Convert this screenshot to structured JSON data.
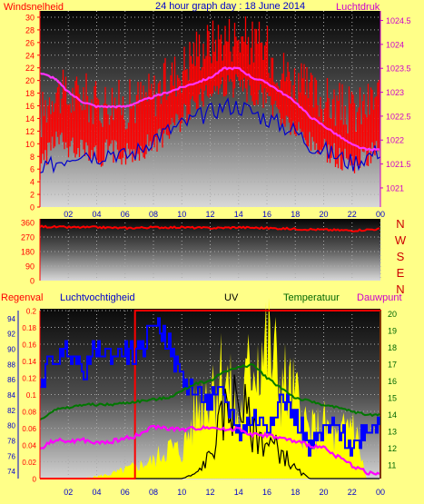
{
  "colors": {
    "background": "#ffff88",
    "wind": "#ff0000",
    "gust_bars": "#ff0000",
    "pressure": "#ff33ff",
    "direction": "#ff0000",
    "rain": "#ff0000",
    "humidity": "#0000ff",
    "uv": "#000000",
    "temperature": "#007700",
    "dewpoint": "#ff00ff",
    "solar": "#ffff00",
    "axis_left": "#ff0000",
    "axis_right": "#cc00cc",
    "axis_blue": "#0000cc",
    "axis_green": "#006600",
    "x_labels": "#0000cc"
  },
  "chart_data": [
    {
      "type": "line",
      "title": "24 hour graph day : 18 June 2014",
      "y_label_left": "Windsnelheid",
      "y_label_right": "Luchtdruk",
      "x_ticks": [
        "02",
        "04",
        "06",
        "08",
        "10",
        "12",
        "14",
        "16",
        "18",
        "20",
        "22",
        "00"
      ],
      "y_ticks_left": [
        "0",
        "2",
        "4",
        "6",
        "8",
        "10",
        "12",
        "14",
        "16",
        "18",
        "20",
        "22",
        "24",
        "26",
        "28",
        "30"
      ],
      "y_ticks_right": [
        "1021",
        "1021.5",
        "1022",
        "1022.5",
        "1023",
        "1023.5",
        "1024",
        "1024.5"
      ],
      "ylim_left": [
        0,
        31
      ],
      "ylim_right": [
        1020.6,
        1024.7
      ],
      "x": [
        0,
        1,
        2,
        3,
        4,
        5,
        6,
        7,
        8,
        9,
        10,
        11,
        12,
        13,
        14,
        15,
        16,
        17,
        18,
        19,
        20,
        21,
        22,
        23,
        24
      ],
      "series": [
        {
          "values": [
            11,
            16,
            14,
            15,
            13,
            14,
            13,
            14,
            15,
            17,
            19,
            22,
            23,
            24,
            24,
            23,
            22,
            19,
            17,
            15,
            14,
            13,
            12,
            13,
            15
          ]
        },
        {
          "values": [
            5,
            7,
            8,
            9,
            8,
            9,
            8,
            9,
            11,
            12,
            13,
            14,
            15,
            16,
            16,
            15,
            14,
            13,
            12,
            10,
            9,
            8,
            7,
            8,
            9
          ]
        },
        {
          "values": [
            1023.4,
            1023.3,
            1023.0,
            1022.8,
            1022.7,
            1022.7,
            1022.7,
            1022.8,
            1022.9,
            1023.0,
            1023.1,
            1023.2,
            1023.3,
            1023.5,
            1023.5,
            1023.3,
            1023.2,
            1023.0,
            1022.8,
            1022.5,
            1022.3,
            1022.1,
            1021.9,
            1021.8,
            1021.8
          ]
        }
      ]
    },
    {
      "type": "line",
      "y_label_right": "N W S E N",
      "y_ticks_left": [
        "0",
        "90",
        "180",
        "270",
        "360"
      ],
      "ylim": [
        0,
        360
      ],
      "x": [
        0,
        2,
        4,
        6,
        8,
        10,
        12,
        14,
        16,
        18,
        20,
        22,
        24
      ],
      "values": [
        335,
        330,
        330,
        325,
        330,
        330,
        325,
        330,
        325,
        320,
        315,
        310,
        320
      ]
    },
    {
      "type": "line",
      "labels": [
        "Regenval",
        "Luchtvochtigheid",
        "UV",
        "Temperatuur",
        "Dauwpunt"
      ],
      "y_ticks_rain": [
        "0",
        "0.02",
        "0.04",
        "0.06",
        "0.08",
        "0.1",
        "0.12",
        "0.14",
        "0.16",
        "0.18",
        "0.2"
      ],
      "y_ticks_humidity": [
        "74",
        "76",
        "78",
        "80",
        "82",
        "84",
        "86",
        "88",
        "90",
        "92",
        "94"
      ],
      "y_ticks_temp": [
        "11",
        "12",
        "13",
        "14",
        "15",
        "16",
        "17",
        "18",
        "19",
        "20"
      ],
      "ylim_rain": [
        0,
        0.2
      ],
      "ylim_humidity": [
        73,
        95
      ],
      "ylim_temp": [
        10.2,
        20.2
      ],
      "x": [
        0,
        1,
        2,
        3,
        4,
        5,
        6,
        7,
        8,
        9,
        10,
        11,
        12,
        13,
        14,
        15,
        16,
        17,
        18,
        19,
        20,
        21,
        22,
        23,
        24
      ],
      "rain_total": [
        0,
        0,
        0,
        0,
        0,
        0,
        0,
        0.2,
        0.2,
        0.2,
        0.2,
        0.2,
        0.2,
        0.2,
        0.2,
        0.2,
        0.2,
        0.2,
        0.2,
        0.2,
        0.2,
        0.2,
        0.2,
        0.2,
        0.2
      ],
      "series": [
        {
          "name": "Luchtvochtigheid",
          "values": [
            86,
            89,
            90,
            87,
            90,
            89,
            90,
            89,
            94,
            91,
            86,
            84,
            83,
            84,
            79,
            81,
            80,
            84,
            81,
            77,
            79,
            80,
            77,
            80,
            80
          ]
        },
        {
          "name": "Temperatuur",
          "values": [
            13.7,
            14.3,
            14.4,
            14.6,
            14.6,
            14.6,
            14.7,
            14.8,
            14.9,
            15.0,
            15.4,
            15.9,
            16.0,
            16.6,
            16.8,
            17.0,
            16.2,
            15.6,
            15.0,
            14.8,
            14.6,
            14.4,
            14.2,
            14.0,
            14.0
          ]
        },
        {
          "name": "Dauwpunt",
          "values": [
            12.0,
            12.5,
            12.4,
            12.5,
            12.3,
            12.4,
            12.6,
            12.8,
            13.3,
            13.2,
            13.1,
            13.2,
            13.3,
            13.1,
            13.2,
            12.8,
            12.8,
            12.6,
            12.4,
            12.2,
            12.0,
            11.5,
            11.0,
            10.6,
            10.4
          ]
        },
        {
          "name": "UV",
          "values": [
            0,
            0,
            0,
            0,
            0,
            0,
            0,
            0,
            0,
            0,
            0,
            0.2,
            1.0,
            2.8,
            3.6,
            2.0,
            1.6,
            1.2,
            0.4,
            0,
            0,
            0,
            0,
            0,
            0
          ]
        }
      ],
      "solar": [
        0,
        0,
        0,
        0,
        0.5,
        1,
        2,
        3,
        4,
        7,
        6,
        15,
        22,
        24,
        12,
        28,
        30,
        22,
        18,
        10,
        12,
        8,
        14,
        0,
        0
      ]
    }
  ]
}
